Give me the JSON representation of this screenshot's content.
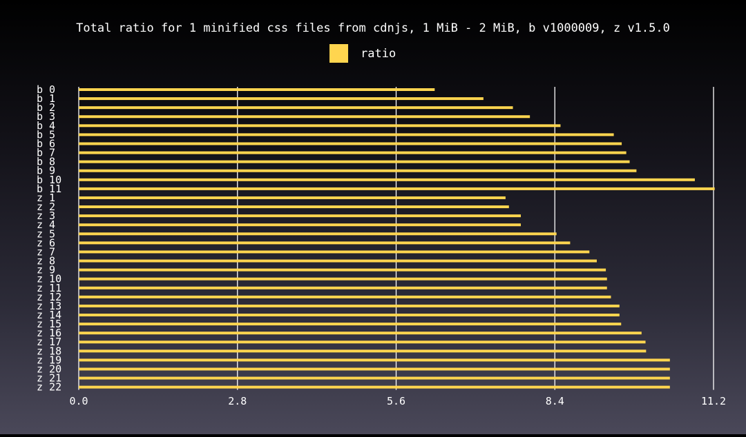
{
  "chart_data": {
    "type": "bar",
    "orientation": "horizontal",
    "title": "Total ratio for 1 minified css files from cdnjs, 1 MiB - 2 MiB, b v1000009, z v1.5.0",
    "legend_position": "top-center",
    "grid": true,
    "xlim": [
      0,
      11.2
    ],
    "x_ticks": [
      "0.0",
      "2.8",
      "5.6",
      "8.4",
      "11.2"
    ],
    "categories": [
      "b  0",
      "b  1",
      "b  2",
      "b  3",
      "b  4",
      "b  5",
      "b  6",
      "b  7",
      "b  8",
      "b  9",
      "b 10",
      "b 11",
      "z  1",
      "z  2",
      "z  3",
      "z  4",
      "z  5",
      "z  6",
      "z  7",
      "z  8",
      "z  9",
      "z 10",
      "z 11",
      "z 12",
      "z 13",
      "z 14",
      "z 15",
      "z 16",
      "z 17",
      "z 18",
      "z 19",
      "z 20",
      "z 21",
      "z 22"
    ],
    "series": [
      {
        "name": "ratio",
        "color": "#ffd54f",
        "values": [
          6.28,
          7.14,
          7.66,
          7.96,
          8.5,
          9.44,
          9.58,
          9.66,
          9.72,
          9.84,
          10.87,
          11.22,
          7.53,
          7.59,
          7.8,
          7.8,
          8.43,
          8.67,
          9.01,
          9.14,
          9.3,
          9.32,
          9.32,
          9.39,
          9.54,
          9.54,
          9.57,
          9.93,
          10.0,
          10.01,
          10.43,
          10.43,
          10.43,
          10.43
        ]
      }
    ]
  },
  "colors": {
    "bar": "#ffd54f",
    "gridline": "#ffffff",
    "text": "#ffffff"
  }
}
